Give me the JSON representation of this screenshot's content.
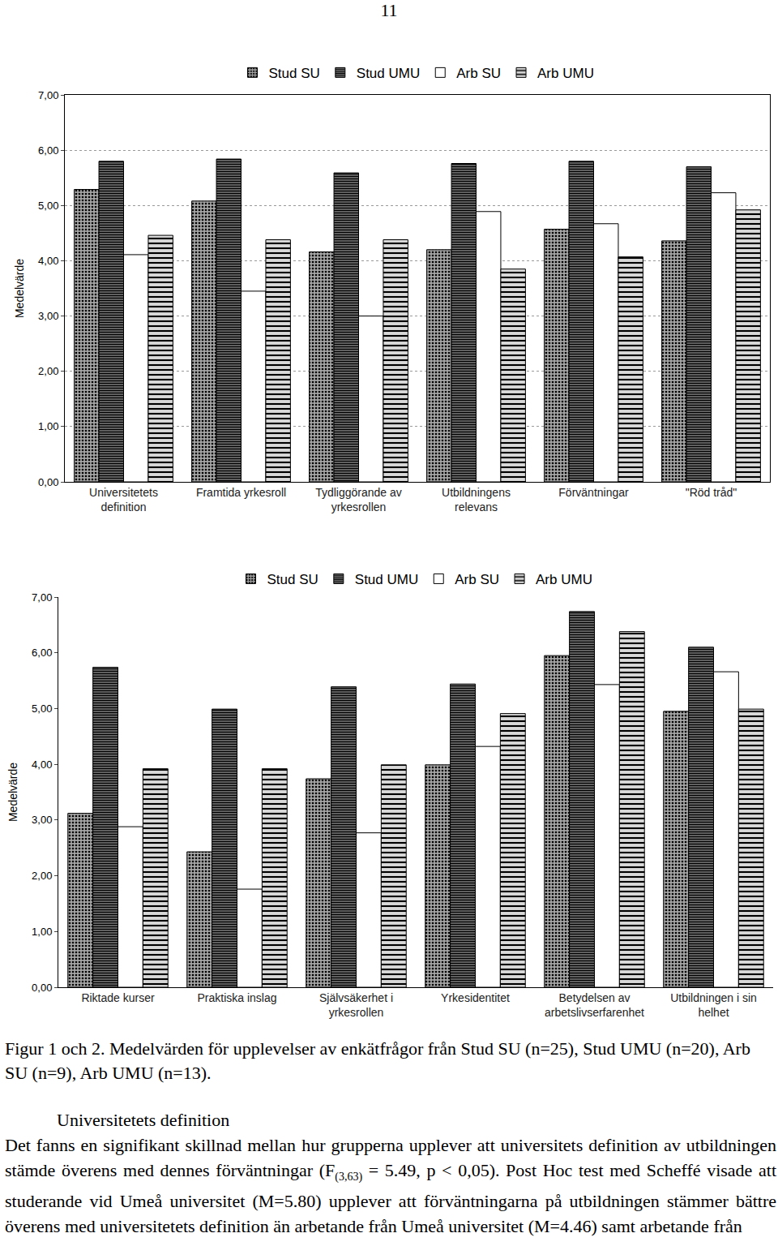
{
  "page_number": "11",
  "chart_data": [
    {
      "type": "bar",
      "y_label": "Medelvärde",
      "categories": [
        "Universitetets definition",
        "Framtida yrkesroll",
        "Tydliggörande av yrkesrollen",
        "Utbildningens relevans",
        "Förväntningar",
        "\"Röd tråd\""
      ],
      "series": [
        {
          "name": "Stud SU",
          "color": "#a6a6a6",
          "values": [
            5.29,
            5.08,
            4.16,
            4.2,
            4.57,
            4.36
          ]
        },
        {
          "name": "Stud UMU",
          "color": "#8c8c8c",
          "values": [
            5.8,
            5.84,
            5.59,
            5.76,
            5.8,
            5.7
          ]
        },
        {
          "name": "Arb SU",
          "color": "#ffffff",
          "values": [
            4.11,
            3.45,
            3.0,
            4.89,
            4.67,
            5.23
          ]
        },
        {
          "name": "Arb UMU",
          "color": "#d9d9d9",
          "values": [
            4.46,
            4.38,
            4.38,
            3.85,
            4.07,
            4.92
          ]
        }
      ],
      "ylim": [
        0,
        7
      ],
      "yticks": [
        {
          "value": 0,
          "label": "0,00"
        },
        {
          "value": 1,
          "label": "1,00"
        },
        {
          "value": 2,
          "label": "2,00"
        },
        {
          "value": 3,
          "label": "3,00"
        },
        {
          "value": 4,
          "label": "4,00"
        },
        {
          "value": 5,
          "label": "5,00"
        },
        {
          "value": 6,
          "label": "6,00"
        },
        {
          "value": 7,
          "label": "7,00"
        }
      ],
      "grid": true,
      "legend": "top"
    },
    {
      "type": "bar",
      "y_label": "Medelvärde",
      "categories": [
        "Riktade kurser",
        "Praktiska inslag",
        "Självsäkerhet i yrkesrollen",
        "Yrkesidentitet",
        "Betydelsen av arbetslivserfarenhet",
        "Utbildningen i sin helhet"
      ],
      "series": [
        {
          "name": "Stud SU",
          "color": "#a6a6a6",
          "values": [
            3.12,
            2.43,
            3.74,
            3.99,
            5.95,
            4.95
          ]
        },
        {
          "name": "Stud UMU",
          "color": "#8c8c8c",
          "values": [
            5.74,
            4.99,
            5.39,
            5.44,
            6.74,
            6.1
          ]
        },
        {
          "name": "Arb SU",
          "color": "#ffffff",
          "values": [
            2.88,
            1.76,
            2.77,
            4.32,
            5.43,
            5.66
          ]
        },
        {
          "name": "Arb UMU",
          "color": "#d9d9d9",
          "values": [
            3.92,
            3.92,
            3.99,
            4.91,
            6.38,
            4.99
          ]
        }
      ],
      "ylim": [
        0,
        7
      ],
      "yticks": [
        {
          "value": 0,
          "label": "0,00"
        },
        {
          "value": 1,
          "label": "1,00"
        },
        {
          "value": 2,
          "label": "2,00"
        },
        {
          "value": 3,
          "label": "3,00"
        },
        {
          "value": 4,
          "label": "4,00"
        },
        {
          "value": 5,
          "label": "5,00"
        },
        {
          "value": 6,
          "label": "6,00"
        },
        {
          "value": 7,
          "label": "7,00"
        }
      ],
      "grid": false,
      "legend": "top"
    }
  ],
  "caption": "Figur 1 och 2. Medelvärden för upplevelser av enkätfrågor från Stud SU (n=25), Stud UMU (n=20), Arb SU (n=9), Arb UMU (n=13).",
  "heading": "Universitetets definition",
  "paragraph": [
    {
      "text": "Det fanns en signifikant skillnad mellan hur grupperna upplever att universitets definition av utbildningen stämde överens med dennes förväntningar (F"
    },
    {
      "sub": "(3,63)"
    },
    {
      "text": " = 5.49, p < 0,05). Post Hoc test med Scheffé visade att studerande vid Umeå universitet (M=5.80) upplever att förväntningarna på utbildningen stämmer bättre överens med universitetets definition än arbetande från Umeå universitet (M=4.46) samt arbetande från"
    }
  ]
}
